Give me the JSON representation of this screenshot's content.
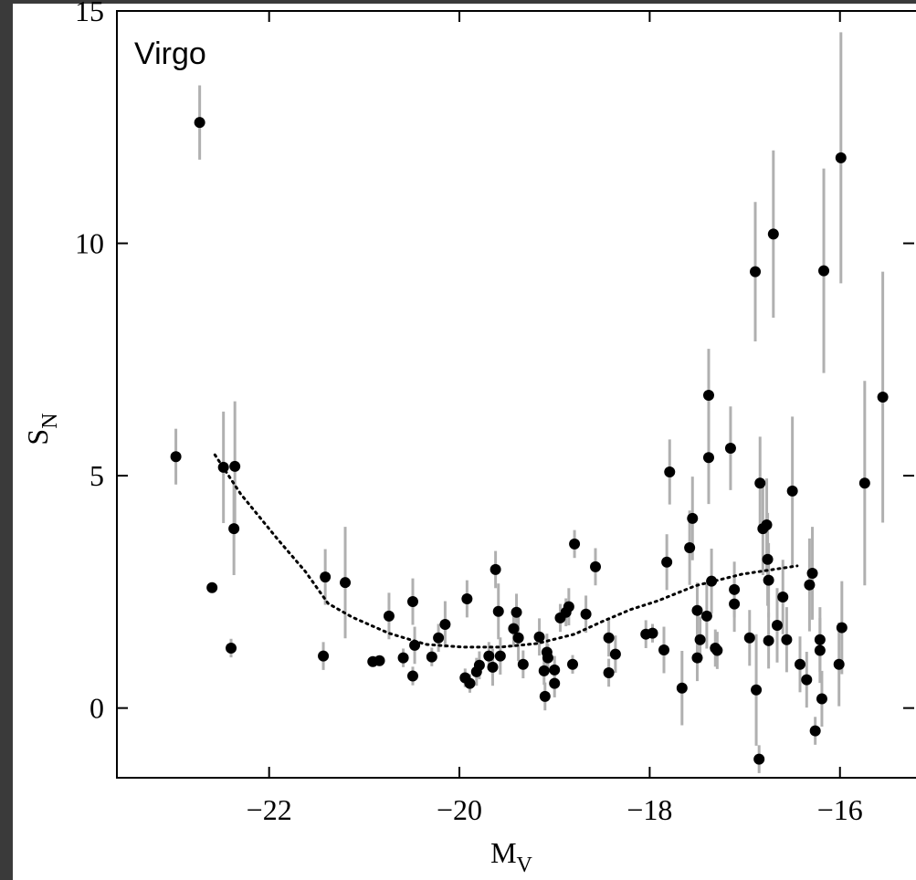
{
  "chart_data": {
    "type": "scatter",
    "annotation": "Virgo",
    "xlabel": {
      "main": "M",
      "sub": "V"
    },
    "ylabel": {
      "main": "S",
      "sub": "N"
    },
    "xlim": [
      -23.6,
      -15.22
    ],
    "ylim": [
      -1.5,
      15
    ],
    "xticks": [
      {
        "value": -22,
        "label": "−22"
      },
      {
        "value": -20,
        "label": "−20"
      },
      {
        "value": -18,
        "label": "−18"
      },
      {
        "value": -16,
        "label": "−16"
      }
    ],
    "yticks": [
      0,
      5,
      10,
      15
    ],
    "series": [
      {
        "color": "#000000",
        "error_color": "#b0b0b0",
        "x": [
          -22.98,
          -22.73,
          -22.6,
          -22.48,
          -22.36,
          -22.37,
          -22.4,
          -21.41,
          -21.43,
          -21.2,
          -20.91,
          -20.84,
          -20.74,
          -20.59,
          -20.49,
          -20.49,
          -20.47,
          -20.29,
          -20.22,
          -20.15,
          -19.94,
          -19.92,
          -19.89,
          -19.82,
          -19.79,
          -19.69,
          -19.65,
          -19.62,
          -19.59,
          -19.57,
          -19.43,
          -19.4,
          -19.38,
          -19.33,
          -19.16,
          -19.11,
          -19.1,
          -19.08,
          -19.07,
          -19.0,
          -19.0,
          -18.94,
          -18.88,
          -18.85,
          -18.81,
          -18.79,
          -18.67,
          -18.57,
          -18.43,
          -18.43,
          -18.36,
          -18.04,
          -17.97,
          -17.85,
          -17.82,
          -17.79,
          -17.66,
          -17.58,
          -17.55,
          -17.5,
          -17.5,
          -17.47,
          -17.4,
          -17.38,
          -17.38,
          -17.35,
          -17.31,
          -17.29,
          -17.15,
          -17.11,
          -17.11,
          -16.95,
          -16.89,
          -16.88,
          -16.85,
          -16.84,
          -16.81,
          -16.77,
          -16.76,
          -16.75,
          -16.75,
          -16.7,
          -16.66,
          -16.6,
          -16.56,
          -16.5,
          -16.42,
          -16.35,
          -16.32,
          -16.29,
          -16.26,
          -16.21,
          -16.21,
          -16.19,
          -16.17,
          -16.01,
          -15.98,
          -15.99,
          -15.74,
          -15.55
        ],
        "values": [
          5.41,
          12.6,
          2.59,
          5.18,
          5.2,
          3.86,
          1.29,
          2.82,
          1.12,
          2.7,
          1.0,
          1.02,
          1.98,
          1.08,
          2.29,
          0.69,
          1.35,
          1.1,
          1.51,
          1.8,
          0.65,
          2.35,
          0.53,
          0.78,
          0.92,
          1.12,
          0.88,
          2.98,
          2.08,
          1.12,
          1.71,
          2.06,
          1.51,
          0.94,
          1.53,
          0.8,
          0.25,
          1.2,
          1.08,
          0.82,
          0.53,
          1.94,
          2.06,
          2.18,
          0.94,
          3.53,
          2.02,
          3.04,
          1.51,
          0.76,
          1.16,
          1.59,
          1.61,
          1.25,
          3.14,
          5.08,
          0.43,
          3.45,
          4.08,
          1.08,
          2.1,
          1.47,
          1.98,
          6.73,
          5.39,
          2.73,
          1.29,
          1.24,
          5.59,
          2.55,
          2.24,
          1.51,
          9.39,
          0.39,
          -1.1,
          4.84,
          3.86,
          3.94,
          3.2,
          1.45,
          2.75,
          10.2,
          1.78,
          2.39,
          1.47,
          4.67,
          0.94,
          0.61,
          2.65,
          2.9,
          -0.49,
          1.47,
          1.24,
          0.2,
          9.41,
          0.94,
          1.73,
          11.84,
          4.84,
          6.69
        ],
        "errors": [
          0.6,
          0.8,
          0,
          1.2,
          1.4,
          1.0,
          0.2,
          0.6,
          0.3,
          1.2,
          0.1,
          0.1,
          0.5,
          0.2,
          0.5,
          0.2,
          0.4,
          0.2,
          0.3,
          0.5,
          0.2,
          0.4,
          0.2,
          0.3,
          0.3,
          0.3,
          0.4,
          0.4,
          0.6,
          0.4,
          0.4,
          0.4,
          0.5,
          0.3,
          0.4,
          0.3,
          0.3,
          0.4,
          0.3,
          0.3,
          0.3,
          0.3,
          0.3,
          0.4,
          0.2,
          0.3,
          0.4,
          0.4,
          0.4,
          0.3,
          0.4,
          0.3,
          0.2,
          0.5,
          0.6,
          0.7,
          0.8,
          0.8,
          0.9,
          0.5,
          0.6,
          0.5,
          0.7,
          1.0,
          1.0,
          0.7,
          0.4,
          0.4,
          0.9,
          0.6,
          0.6,
          0.6,
          1.5,
          1.2,
          0.3,
          1.0,
          1.0,
          1.0,
          1.0,
          0.6,
          0.8,
          1.8,
          0.8,
          0.8,
          0.7,
          1.6,
          0.6,
          0.6,
          1.0,
          1.0,
          0.3,
          0.7,
          0.7,
          0.6,
          2.2,
          0.9,
          1.0,
          2.7,
          2.2,
          2.7
        ]
      }
    ],
    "fit": {
      "color": "#000000",
      "x": [
        -22.57,
        -22.3,
        -21.91,
        -21.62,
        -21.38,
        -21.13,
        -20.74,
        -20.35,
        -19.96,
        -19.57,
        -19.18,
        -18.79,
        -18.5,
        -18.2,
        -17.91,
        -17.52,
        -17.03,
        -16.45
      ],
      "values": [
        5.45,
        4.61,
        3.63,
        2.94,
        2.25,
        1.96,
        1.61,
        1.37,
        1.31,
        1.31,
        1.39,
        1.59,
        1.86,
        2.12,
        2.31,
        2.63,
        2.88,
        3.06
      ]
    }
  }
}
